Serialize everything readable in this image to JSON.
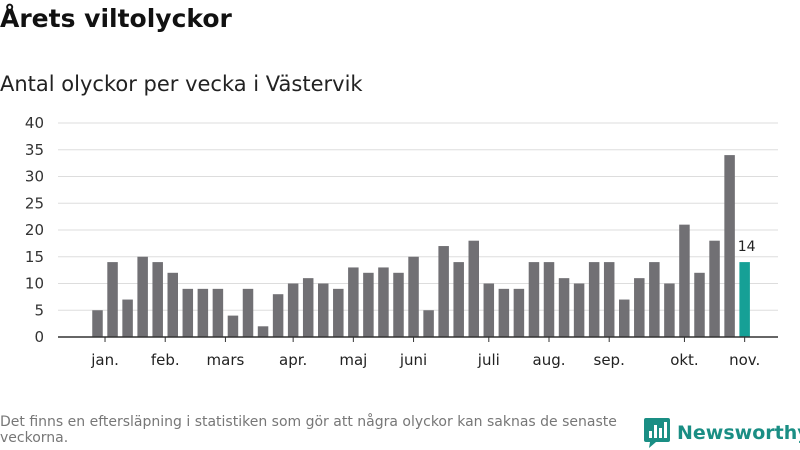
{
  "header": {
    "title": "Årets viltolyckor",
    "subtitle": "Antal olyckor per vecka i Västervik"
  },
  "footer": {
    "note": "Det finns en eftersläpning i statistiken som gör att några olyckor kan saknas de senaste veckorna.",
    "brand": "Newsworthy",
    "brand_icon": "newsworthy-logo-icon"
  },
  "colors": {
    "bar": "#717074",
    "highlight": "#16a096",
    "grid": "#dddddd",
    "axis": "#333333",
    "brand": "#1a8e84"
  },
  "chart_data": {
    "type": "bar",
    "title": "Årets viltolyckor",
    "subtitle": "Antal olyckor per vecka i Västervik",
    "xlabel": "",
    "ylabel": "",
    "ylim": [
      0,
      40
    ],
    "yticks": [
      0,
      5,
      10,
      15,
      20,
      25,
      30,
      35,
      40
    ],
    "grid": true,
    "legend": "none",
    "x": [
      1,
      2,
      3,
      4,
      5,
      6,
      7,
      8,
      9,
      10,
      11,
      12,
      13,
      14,
      15,
      16,
      17,
      18,
      19,
      20,
      21,
      22,
      23,
      24,
      25,
      26,
      27,
      28,
      29,
      30,
      31,
      32,
      33,
      34,
      35,
      36,
      37,
      38,
      39,
      40,
      41,
      42,
      43,
      44
    ],
    "values": [
      5,
      14,
      7,
      15,
      14,
      12,
      9,
      9,
      9,
      4,
      9,
      2,
      8,
      10,
      11,
      10,
      9,
      13,
      12,
      13,
      12,
      15,
      5,
      17,
      14,
      18,
      10,
      9,
      9,
      14,
      14,
      11,
      10,
      14,
      14,
      7,
      11,
      14,
      10,
      21,
      12,
      18,
      34,
      14
    ],
    "highlight_index": 43,
    "data_labels": [
      {
        "index": 43,
        "text": "14"
      }
    ],
    "month_labels": [
      {
        "label": "jan.",
        "x": 1.5
      },
      {
        "label": "feb.",
        "x": 5.5
      },
      {
        "label": "mars",
        "x": 9.5
      },
      {
        "label": "apr.",
        "x": 14.0
      },
      {
        "label": "maj",
        "x": 18.0
      },
      {
        "label": "juni",
        "x": 22.0
      },
      {
        "label": "juli",
        "x": 27.0
      },
      {
        "label": "aug.",
        "x": 31.0
      },
      {
        "label": "sep.",
        "x": 35.0
      },
      {
        "label": "okt.",
        "x": 40.0
      },
      {
        "label": "nov.",
        "x": 44.0
      }
    ]
  }
}
